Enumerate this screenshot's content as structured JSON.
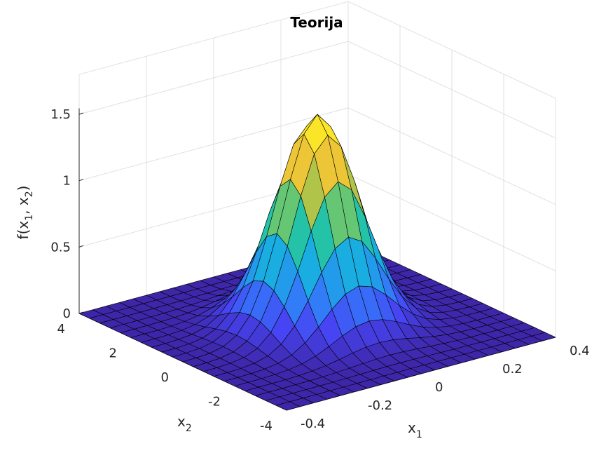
{
  "chart_data": {
    "type": "surface3d",
    "title": "Teorija",
    "xlabel": "x1",
    "ylabel": "x2",
    "zlabel": "f(x1, x2)",
    "axis_labels": {
      "x": {
        "base": "x",
        "sub": "1"
      },
      "y": {
        "base": "x",
        "sub": "2"
      },
      "z": {
        "pre": "f(x",
        "sub1": "1",
        "mid": ", x",
        "sub2": "2",
        "post": ")"
      }
    },
    "xlim": [
      -0.4,
      0.4
    ],
    "ylim": [
      -4,
      4
    ],
    "zlim": [
      0,
      1.5
    ],
    "xticks": [
      -0.4,
      -0.2,
      0,
      0.2,
      0.4
    ],
    "xtick_labels": [
      "-0.4",
      "-0.2",
      "0",
      "0.2",
      "0.4"
    ],
    "yticks": [
      -4,
      -2,
      0,
      2,
      4
    ],
    "ytick_labels": [
      "-4",
      "-2",
      "0",
      "2",
      "4"
    ],
    "zticks": [
      0,
      0.5,
      1,
      1.5
    ],
    "ztick_labels": [
      "0",
      "0.5",
      "1",
      "1.5"
    ],
    "grid": true,
    "colormap": "parula",
    "surface": {
      "function": "bivariate normal density",
      "mean": [
        0,
        0
      ],
      "sigma_x1": 0.1,
      "sigma_x2": 1.0,
      "peak_value": 1.59,
      "grid_points_x1": 21,
      "grid_points_x2": 21
    },
    "colors": {
      "colormap_stops": [
        "#3e26a8",
        "#4745f3",
        "#2e85f9",
        "#18afdf",
        "#24c3a8",
        "#86c958",
        "#e6bd39",
        "#fbd634",
        "#f9fb15"
      ],
      "edge": "#000000",
      "grid": "#e0e0e0",
      "axis": "#262626"
    }
  }
}
